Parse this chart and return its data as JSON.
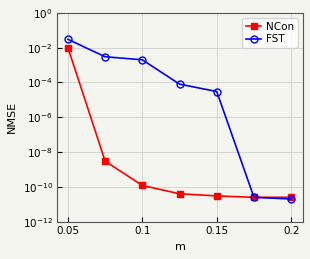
{
  "ncon_x": [
    0.05,
    0.075,
    0.1,
    0.125,
    0.15,
    0.175,
    0.2
  ],
  "ncon_y": [
    0.01,
    3e-09,
    1.2e-10,
    4e-11,
    3e-11,
    2.5e-11,
    2.5e-11
  ],
  "fst_x": [
    0.05,
    0.075,
    0.1,
    0.125,
    0.15,
    0.175,
    0.2
  ],
  "fst_y": [
    0.03,
    0.003,
    0.002,
    8e-05,
    3e-05,
    2.5e-11,
    2e-11
  ],
  "ncon_color": "#ff0000",
  "fst_color": "#0000ff",
  "ncon_marker": "s",
  "fst_marker": "o",
  "ncon_markersize": 4,
  "fst_markersize": 5,
  "linewidth": 1.2,
  "xlabel": "m",
  "ylabel": "NMSE",
  "xlim": [
    0.043,
    0.208
  ],
  "ylim_log_min": -12,
  "ylim_log_max": 0,
  "xticks": [
    0.05,
    0.1,
    0.15,
    0.2
  ],
  "yticks_exp": [
    0,
    -2,
    -4,
    -6,
    -8,
    -10,
    -12
  ],
  "legend_labels": [
    "NCon",
    "FST"
  ],
  "grid_color": "#d0d0d0",
  "background_color": "#f5f5f0",
  "label_fontsize": 8,
  "tick_fontsize": 7.5,
  "legend_fontsize": 7.5
}
